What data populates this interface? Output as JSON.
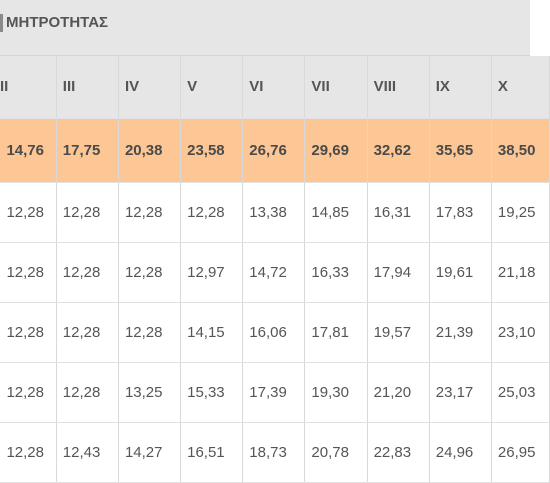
{
  "table": {
    "caption": "ΜΗΤΡΟΤΗΤΑΣ",
    "headers": [
      "II",
      "III",
      "IV",
      "V",
      "VI",
      "VII",
      "VIII",
      "IX",
      "X"
    ],
    "highlight_row": [
      "14,76",
      "17,75",
      "20,38",
      "23,58",
      "26,76",
      "29,69",
      "32,62",
      "35,65",
      "38,50"
    ],
    "rows": [
      [
        "12,28",
        "12,28",
        "12,28",
        "12,28",
        "13,38",
        "14,85",
        "16,31",
        "17,83",
        "19,25"
      ],
      [
        "12,28",
        "12,28",
        "12,28",
        "12,97",
        "14,72",
        "16,33",
        "17,94",
        "19,61",
        "21,18"
      ],
      [
        "12,28",
        "12,28",
        "12,28",
        "14,15",
        "16,06",
        "17,81",
        "19,57",
        "21,39",
        "23,10"
      ],
      [
        "12,28",
        "12,28",
        "13,25",
        "15,33",
        "17,39",
        "19,30",
        "21,20",
        "23,17",
        "25,03"
      ],
      [
        "12,28",
        "12,43",
        "14,27",
        "16,51",
        "18,73",
        "20,78",
        "22,83",
        "24,96",
        "26,95"
      ]
    ]
  },
  "colors": {
    "header_bg": "#e6e6e6",
    "highlight_bg": "#fcc795",
    "text": "#555555",
    "grid_line": "#d9d9d9"
  }
}
